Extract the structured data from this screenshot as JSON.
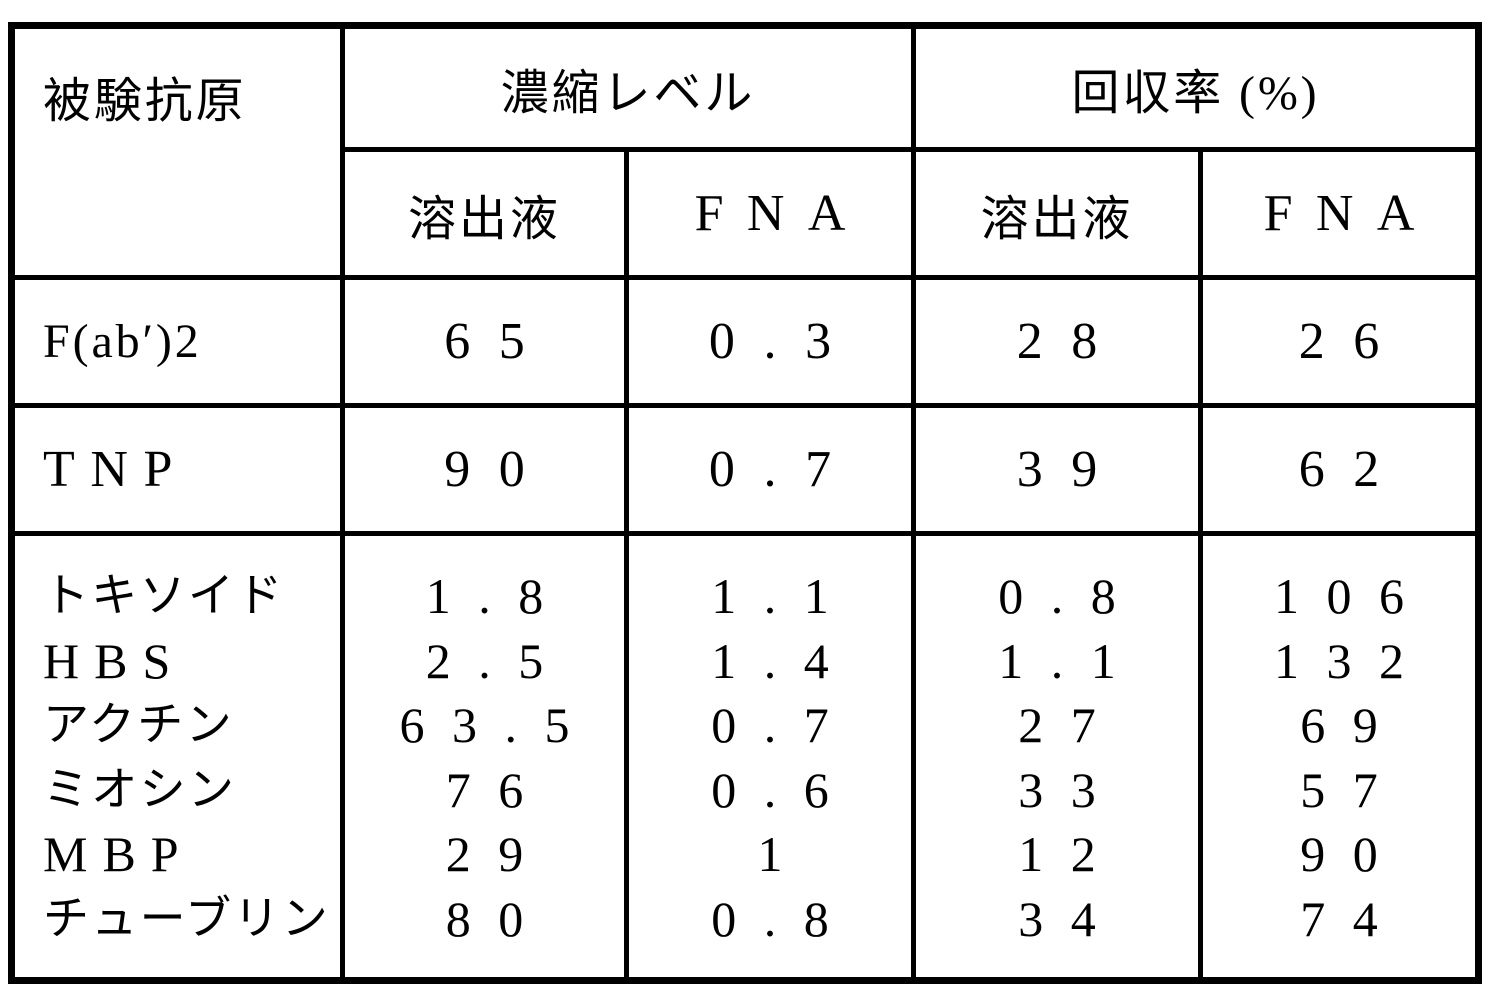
{
  "table": {
    "columns": {
      "antigen": "被験抗原",
      "concentration_group": "濃縮レベル",
      "recovery_group": "回収率 (%)",
      "subheaders": [
        "溶出液",
        "FNA",
        "溶出液",
        "FNA"
      ]
    },
    "rows_top": [
      {
        "antigen": "F(ab′)2",
        "conc_elution": "65",
        "conc_fna": "0.3",
        "rec_elution": "28",
        "rec_fna": "26"
      },
      {
        "antigen": "TNP",
        "conc_elution": "90",
        "conc_fna": "0.7",
        "rec_elution": "39",
        "rec_fna": "62"
      }
    ],
    "rows_bottom": [
      {
        "antigen": "トキソイド",
        "conc_elution": "1.8",
        "conc_fna": "1.1",
        "rec_elution": "0.8",
        "rec_fna": "106"
      },
      {
        "antigen": "HBS",
        "conc_elution": "2.5",
        "conc_fna": "1.4",
        "rec_elution": "1.1",
        "rec_fna": "132"
      },
      {
        "antigen": "アクチン",
        "conc_elution": "63.5",
        "conc_fna": "0.7",
        "rec_elution": "27",
        "rec_fna": "69"
      },
      {
        "antigen": "ミオシン",
        "conc_elution": "76",
        "conc_fna": "0.6",
        "rec_elution": "33",
        "rec_fna": "57"
      },
      {
        "antigen": "MBP",
        "conc_elution": "29",
        "conc_fna": "1",
        "rec_elution": "12",
        "rec_fna": "90"
      },
      {
        "antigen": "チューブリン",
        "conc_elution": "80",
        "conc_fna": "0.8",
        "rec_elution": "34",
        "rec_fna": "74"
      }
    ]
  }
}
